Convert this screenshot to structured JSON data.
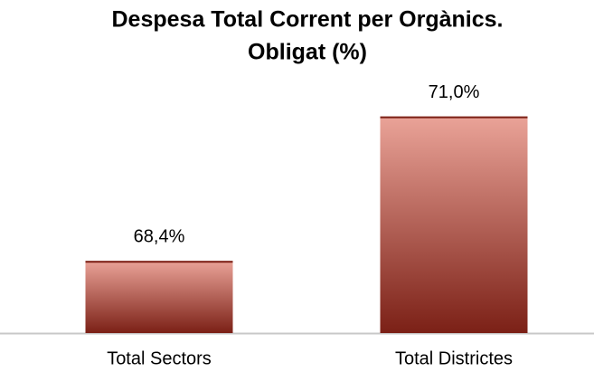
{
  "chart_data": {
    "type": "bar",
    "title": "Despesa Total Corrent per Orgànics.",
    "subtitle": "Obligat (%)",
    "categories": [
      "Total Sectors",
      "Total Districtes"
    ],
    "values": [
      68.4,
      71.0
    ],
    "value_labels": [
      "68,4%",
      "71,0%"
    ],
    "color": "#7b2016",
    "ylim": [
      67.1,
      71.5
    ]
  }
}
